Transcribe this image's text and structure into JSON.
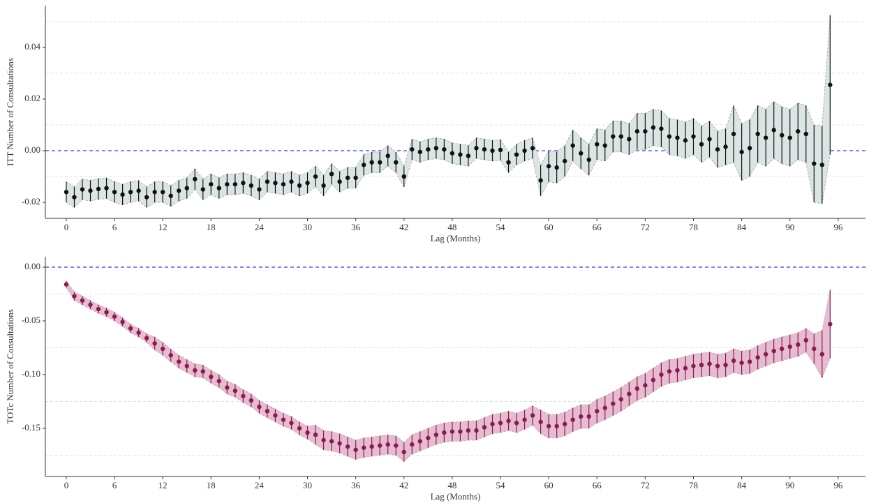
{
  "chart_data": [
    {
      "type": "errorbar",
      "ylabel": "ITT Number of Consultations",
      "xlabel": "Lag (Months)",
      "x": [
        0,
        1,
        2,
        3,
        4,
        5,
        6,
        7,
        8,
        9,
        10,
        11,
        12,
        13,
        14,
        15,
        16,
        17,
        18,
        19,
        20,
        21,
        22,
        23,
        24,
        25,
        26,
        27,
        28,
        29,
        30,
        31,
        32,
        33,
        34,
        35,
        36,
        37,
        38,
        39,
        40,
        41,
        42,
        43,
        44,
        45,
        46,
        47,
        48,
        49,
        50,
        51,
        52,
        53,
        54,
        55,
        56,
        57,
        58,
        59,
        60,
        61,
        62,
        63,
        64,
        65,
        66,
        67,
        68,
        69,
        70,
        71,
        72,
        73,
        74,
        75,
        76,
        77,
        78,
        79,
        80,
        81,
        82,
        83,
        84,
        85,
        86,
        87,
        88,
        89,
        90,
        91,
        92,
        93,
        94,
        95
      ],
      "series": [
        {
          "color": "#111111",
          "band_color": "#dbe5e3",
          "band_edge": "#9aa5a3",
          "values": [
            -0.016,
            -0.018,
            -0.015,
            -0.0155,
            -0.0148,
            -0.0145,
            -0.016,
            -0.017,
            -0.016,
            -0.0155,
            -0.018,
            -0.016,
            -0.016,
            -0.0175,
            -0.0155,
            -0.0145,
            -0.011,
            -0.015,
            -0.013,
            -0.0145,
            -0.013,
            -0.013,
            -0.0125,
            -0.0135,
            -0.015,
            -0.012,
            -0.0125,
            -0.013,
            -0.012,
            -0.0135,
            -0.0125,
            -0.01,
            -0.0135,
            -0.009,
            -0.012,
            -0.0105,
            -0.0105,
            -0.0055,
            -0.0045,
            -0.0045,
            -0.002,
            -0.0045,
            -0.01,
            0.0005,
            -0.0005,
            0.0005,
            0.001,
            0.0005,
            -0.001,
            -0.0015,
            -0.002,
            0.001,
            0.0005,
            0,
            0.0003,
            -0.0045,
            -0.0015,
            0,
            0.001,
            -0.0115,
            -0.006,
            -0.0065,
            -0.004,
            0.002,
            -0.001,
            -0.0035,
            0.0025,
            0.002,
            0.0055,
            0.0055,
            0.0045,
            0.0075,
            0.0075,
            0.009,
            0.0085,
            0.0055,
            0.005,
            0.004,
            0.0055,
            0.0025,
            0.0045,
            0.0005,
            0.0015,
            0.0065,
            -0.0005,
            0.001,
            0.0065,
            0.005,
            0.008,
            0.006,
            0.005,
            0.0075,
            0.0065,
            -0.005,
            -0.0055,
            0.0255
          ],
          "errors": [
            0.004,
            0.004,
            0.004,
            0.004,
            0.004,
            0.004,
            0.004,
            0.004,
            0.004,
            0.004,
            0.004,
            0.004,
            0.004,
            0.004,
            0.004,
            0.004,
            0.004,
            0.004,
            0.004,
            0.004,
            0.004,
            0.004,
            0.004,
            0.004,
            0.004,
            0.004,
            0.004,
            0.004,
            0.004,
            0.004,
            0.004,
            0.004,
            0.004,
            0.004,
            0.004,
            0.004,
            0.004,
            0.004,
            0.004,
            0.004,
            0.004,
            0.004,
            0.004,
            0.004,
            0.004,
            0.004,
            0.004,
            0.004,
            0.004,
            0.004,
            0.004,
            0.004,
            0.004,
            0.004,
            0.004,
            0.004,
            0.004,
            0.004,
            0.004,
            0.006,
            0.006,
            0.006,
            0.006,
            0.006,
            0.006,
            0.006,
            0.006,
            0.006,
            0.006,
            0.006,
            0.006,
            0.007,
            0.007,
            0.007,
            0.007,
            0.007,
            0.007,
            0.007,
            0.007,
            0.007,
            0.007,
            0.007,
            0.007,
            0.011,
            0.011,
            0.011,
            0.011,
            0.011,
            0.011,
            0.011,
            0.011,
            0.011,
            0.011,
            0.015,
            0.015,
            0.027
          ]
        }
      ],
      "xlim": [
        -2.6,
        99.4
      ],
      "xticks": [
        0,
        6,
        12,
        18,
        24,
        30,
        36,
        42,
        48,
        54,
        60,
        66,
        72,
        78,
        84,
        90,
        96
      ],
      "ylim": [
        -0.0262,
        0.0562
      ],
      "yticks": [
        -0.02,
        {
          "value": 0,
          "label": "0.00"
        },
        0.02,
        0.04
      ],
      "minor_grid": [
        -0.01,
        0.01,
        0.03,
        0.05
      ],
      "hline": 0,
      "hline_color": "#3344ee"
    },
    {
      "type": "errorbar",
      "ylabel": "TOTc Number of Consultations",
      "xlabel": "Lag (Months)",
      "x": [
        0,
        1,
        2,
        3,
        4,
        5,
        6,
        7,
        8,
        9,
        10,
        11,
        12,
        13,
        14,
        15,
        16,
        17,
        18,
        19,
        20,
        21,
        22,
        23,
        24,
        25,
        26,
        27,
        28,
        29,
        30,
        31,
        32,
        33,
        34,
        35,
        36,
        37,
        38,
        39,
        40,
        41,
        42,
        43,
        44,
        45,
        46,
        47,
        48,
        49,
        50,
        51,
        52,
        53,
        54,
        55,
        56,
        57,
        58,
        59,
        60,
        61,
        62,
        63,
        64,
        65,
        66,
        67,
        68,
        69,
        70,
        71,
        72,
        73,
        74,
        75,
        76,
        77,
        78,
        79,
        80,
        81,
        82,
        83,
        84,
        85,
        86,
        87,
        88,
        89,
        90,
        91,
        92,
        93,
        94,
        95
      ],
      "series": [
        {
          "color": "#8b1a4f",
          "band_color": "#e6bdd0",
          "band_edge": "#c9a0b4",
          "values": [
            -0.016,
            -0.027,
            -0.031,
            -0.035,
            -0.039,
            -0.042,
            -0.046,
            -0.051,
            -0.057,
            -0.061,
            -0.066,
            -0.071,
            -0.076,
            -0.082,
            -0.088,
            -0.092,
            -0.096,
            -0.097,
            -0.102,
            -0.106,
            -0.112,
            -0.115,
            -0.12,
            -0.124,
            -0.13,
            -0.134,
            -0.138,
            -0.142,
            -0.145,
            -0.15,
            -0.154,
            -0.156,
            -0.161,
            -0.162,
            -0.164,
            -0.167,
            -0.17,
            -0.168,
            -0.167,
            -0.166,
            -0.165,
            -0.166,
            -0.172,
            -0.165,
            -0.162,
            -0.159,
            -0.156,
            -0.154,
            -0.153,
            -0.153,
            -0.152,
            -0.152,
            -0.149,
            -0.146,
            -0.145,
            -0.143,
            -0.145,
            -0.142,
            -0.138,
            -0.144,
            -0.148,
            -0.148,
            -0.146,
            -0.142,
            -0.139,
            -0.139,
            -0.134,
            -0.131,
            -0.127,
            -0.123,
            -0.118,
            -0.113,
            -0.11,
            -0.105,
            -0.1,
            -0.097,
            -0.096,
            -0.094,
            -0.092,
            -0.091,
            -0.09,
            -0.092,
            -0.091,
            -0.087,
            -0.089,
            -0.088,
            -0.084,
            -0.081,
            -0.078,
            -0.076,
            -0.074,
            -0.072,
            -0.068,
            -0.076,
            -0.081,
            -0.053
          ],
          "errors": [
            0.003,
            0.004,
            0.004,
            0.004,
            0.004,
            0.004,
            0.004,
            0.004,
            0.004,
            0.004,
            0.004,
            0.006,
            0.006,
            0.006,
            0.006,
            0.006,
            0.006,
            0.006,
            0.006,
            0.006,
            0.006,
            0.006,
            0.006,
            0.006,
            0.006,
            0.006,
            0.006,
            0.006,
            0.006,
            0.006,
            0.006,
            0.009,
            0.009,
            0.009,
            0.009,
            0.009,
            0.009,
            0.009,
            0.009,
            0.009,
            0.009,
            0.009,
            0.009,
            0.009,
            0.009,
            0.009,
            0.009,
            0.009,
            0.009,
            0.009,
            0.009,
            0.009,
            0.009,
            0.009,
            0.009,
            0.009,
            0.009,
            0.009,
            0.009,
            0.011,
            0.011,
            0.011,
            0.011,
            0.011,
            0.011,
            0.011,
            0.011,
            0.011,
            0.011,
            0.011,
            0.011,
            0.011,
            0.011,
            0.011,
            0.011,
            0.011,
            0.011,
            0.011,
            0.011,
            0.011,
            0.011,
            0.011,
            0.011,
            0.011,
            0.011,
            0.011,
            0.011,
            0.011,
            0.011,
            0.011,
            0.011,
            0.011,
            0.011,
            0.014,
            0.022,
            0.032
          ]
        }
      ],
      "xlim": [
        -2.6,
        99.4
      ],
      "xticks": [
        0,
        6,
        12,
        18,
        24,
        30,
        36,
        42,
        48,
        54,
        60,
        66,
        72,
        78,
        84,
        90,
        96
      ],
      "ylim": [
        -0.1948,
        0.0097
      ],
      "yticks": [
        -0.15,
        {
          "value": -0.1,
          "label": "-0.10"
        },
        -0.05,
        {
          "value": 0,
          "label": "0.00"
        }
      ],
      "minor_grid": [
        -0.175,
        -0.125,
        -0.075,
        -0.025
      ],
      "hline": 0,
      "hline_color": "#3344ee"
    }
  ]
}
